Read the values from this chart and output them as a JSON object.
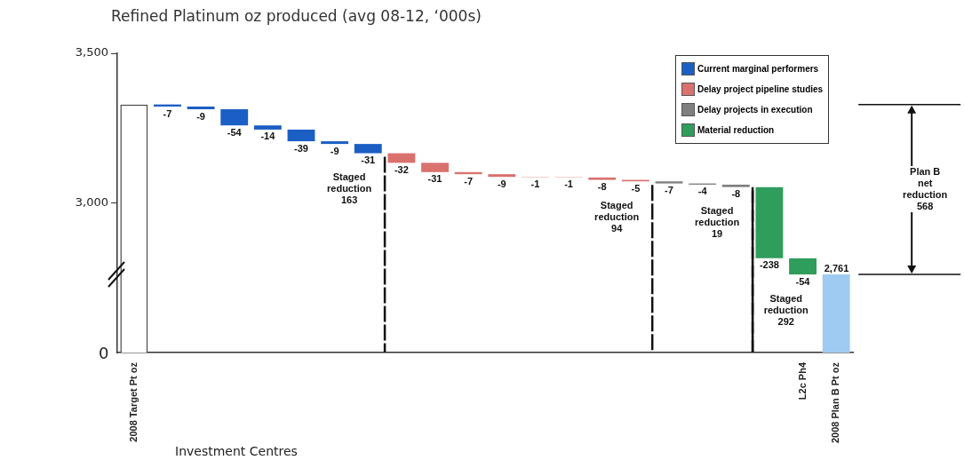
{
  "chart_data": {
    "type": "bar",
    "title": "Refined Platinum oz produced (avg 08-12, ‘000s)",
    "xlabel": "Investment Centres",
    "categories": [
      "2008 Target Pt oz",
      null,
      null,
      null,
      null,
      null,
      null,
      null,
      null,
      null,
      null,
      null,
      null,
      null,
      null,
      null,
      null,
      null,
      null,
      null,
      "L2c Ph4",
      "2008 Plan B Pt oz"
    ],
    "series": [
      {
        "color": "#ffffff",
        "values": [
          3329,
          null,
          null,
          null,
          null,
          null,
          null,
          null,
          null,
          null,
          null,
          null,
          null,
          null,
          null,
          null,
          null,
          null,
          null,
          null,
          null,
          null
        ]
      },
      {
        "name": "Current marginal performers",
        "color": "#1b5fc4",
        "values": [
          null,
          -7,
          -9,
          -54,
          -14,
          -39,
          -9,
          -31,
          null,
          null,
          null,
          null,
          null,
          null,
          null,
          null,
          null,
          null,
          null,
          null,
          null,
          null
        ],
        "value_labels": [
          null,
          "-7",
          "-9",
          "-54",
          "-14",
          "-39",
          "-9",
          "-31",
          null,
          null,
          null,
          null,
          null,
          null,
          null,
          null,
          null,
          null,
          null,
          null,
          null,
          null
        ],
        "base": [
          null,
          3329,
          3322,
          3313,
          3259,
          3245,
          3206,
          3197,
          null,
          null,
          null,
          null,
          null,
          null,
          null,
          null,
          null,
          null,
          null,
          null,
          null,
          null
        ]
      },
      {
        "name": "Delay project pipeline studies",
        "color": "#d9716f",
        "values": [
          null,
          null,
          null,
          null,
          null,
          null,
          null,
          null,
          -32,
          -31,
          -7,
          -9,
          -1,
          -1,
          -8,
          -5,
          null,
          null,
          null,
          null,
          null,
          null
        ],
        "value_labels": [
          null,
          null,
          null,
          null,
          null,
          null,
          null,
          null,
          "-32",
          "-31",
          "-7",
          "-9",
          "-1",
          "-1",
          "-8",
          "-5",
          null,
          null,
          null,
          null,
          null,
          null
        ],
        "base": [
          null,
          null,
          null,
          null,
          null,
          null,
          null,
          null,
          3166,
          3134,
          3103,
          3096,
          3087,
          3086,
          3085,
          3077,
          null,
          null,
          null,
          null,
          null,
          null
        ]
      },
      {
        "name": "Delay projects in execution",
        "color": "#7f7f7f",
        "values": [
          null,
          null,
          null,
          null,
          null,
          null,
          null,
          null,
          null,
          null,
          null,
          null,
          null,
          null,
          null,
          null,
          -7,
          -4,
          -8,
          null,
          null,
          null
        ],
        "value_labels": [
          null,
          null,
          null,
          null,
          null,
          null,
          null,
          null,
          null,
          null,
          null,
          null,
          null,
          null,
          null,
          null,
          "-7",
          "-4",
          "-8",
          null,
          null,
          null
        ],
        "base": [
          null,
          null,
          null,
          null,
          null,
          null,
          null,
          null,
          null,
          null,
          null,
          null,
          null,
          null,
          null,
          null,
          3072,
          3065,
          3061,
          null,
          null,
          null
        ]
      },
      {
        "name": "Material reduction",
        "color": "#2f9d5c",
        "values": [
          null,
          null,
          null,
          null,
          null,
          null,
          null,
          null,
          null,
          null,
          null,
          null,
          null,
          null,
          null,
          null,
          null,
          null,
          null,
          -238,
          -54,
          null
        ],
        "value_labels": [
          null,
          null,
          null,
          null,
          null,
          null,
          null,
          null,
          null,
          null,
          null,
          null,
          null,
          null,
          null,
          null,
          null,
          null,
          null,
          "-238",
          "-54",
          null
        ],
        "base": [
          null,
          null,
          null,
          null,
          null,
          null,
          null,
          null,
          null,
          null,
          null,
          null,
          null,
          null,
          null,
          null,
          null,
          null,
          null,
          3053,
          2815,
          null
        ]
      },
      {
        "color": "#9fcbf2",
        "values": [
          null,
          null,
          null,
          null,
          null,
          null,
          null,
          null,
          null,
          null,
          null,
          null,
          null,
          null,
          null,
          null,
          null,
          null,
          null,
          null,
          null,
          2761
        ],
        "value_labels": [
          null,
          null,
          null,
          null,
          null,
          null,
          null,
          null,
          null,
          null,
          null,
          null,
          null,
          null,
          null,
          null,
          null,
          null,
          null,
          null,
          null,
          "2,761"
        ]
      }
    ],
    "ylim": [
      2500,
      3500
    ],
    "yticks": [
      {
        "value": 3000,
        "label": "3,000"
      },
      {
        "value": 3500,
        "label": "3,500"
      }
    ],
    "grid": false,
    "legend": "top right",
    "annotations": [
      "Staged\nreduction\n163",
      "Staged\nreduction\n94",
      "Staged\nreduction\n19",
      "Staged\nreduction\n292",
      "Plan B\nnet\nreduction\n568",
      "0"
    ]
  }
}
